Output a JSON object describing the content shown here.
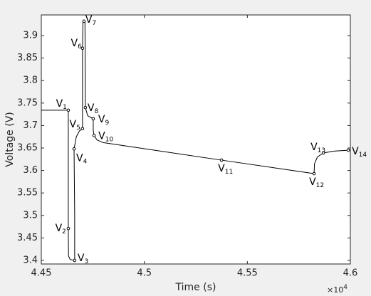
{
  "chart_data": {
    "type": "line",
    "xlabel": "Time (s)",
    "ylabel": "Voltage (V)",
    "x_multiplier": "×10",
    "x_multiplier_exp": "4",
    "xlim": [
      44500,
      46000
    ],
    "ylim": [
      3.392,
      3.946
    ],
    "xticks": [
      {
        "value": 44500,
        "label": "4.45"
      },
      {
        "value": 45000,
        "label": "4.5"
      },
      {
        "value": 45500,
        "label": "4.55"
      },
      {
        "value": 46000,
        "label": "4.6"
      }
    ],
    "yticks": [
      3.4,
      3.45,
      3.5,
      3.55,
      3.6,
      3.65,
      3.7,
      3.75,
      3.8,
      3.85,
      3.9
    ],
    "series": [
      {
        "color": "#000000",
        "x": [
          44500,
          44631,
          44631,
          44632,
          44640,
          44662,
          44662,
          44659,
          44670,
          44685,
          44700,
          44700,
          44702,
          44707,
          44712,
          44714,
          44725,
          44752,
          44752,
          44756,
          44770,
          44800,
          45375,
          45824,
          45826,
          45840,
          45869,
          45920,
          45990,
          46000
        ],
        "values": [
          3.734,
          3.734,
          3.471,
          3.41,
          3.402,
          3.4,
          3.5,
          3.648,
          3.675,
          3.688,
          3.693,
          3.872,
          3.93,
          3.932,
          3.93,
          3.74,
          3.722,
          3.715,
          3.69,
          3.678,
          3.668,
          3.662,
          3.623,
          3.593,
          3.615,
          3.63,
          3.639,
          3.643,
          3.645,
          3.646
        ]
      }
    ],
    "annotations": [
      {
        "text": "V",
        "sub": "1",
        "x": 44631,
        "y": 3.734
      },
      {
        "text": "V",
        "sub": "2",
        "x": 44631,
        "y": 3.471
      },
      {
        "text": "V",
        "sub": "3",
        "x": 44662,
        "y": 3.4
      },
      {
        "text": "V",
        "sub": "4",
        "x": 44659,
        "y": 3.648
      },
      {
        "text": "V",
        "sub": "5",
        "x": 44700,
        "y": 3.693
      },
      {
        "text": "V",
        "sub": "6",
        "x": 44700,
        "y": 3.872
      },
      {
        "text": "V",
        "sub": "7",
        "x": 44707,
        "y": 3.932
      },
      {
        "text": "V",
        "sub": "8",
        "x": 44714,
        "y": 3.74
      },
      {
        "text": "V",
        "sub": "9",
        "x": 44752,
        "y": 3.715
      },
      {
        "text": "V",
        "sub": "10",
        "x": 44756,
        "y": 3.678
      },
      {
        "text": "V",
        "sub": "11",
        "x": 45375,
        "y": 3.623
      },
      {
        "text": "V",
        "sub": "12",
        "x": 45824,
        "y": 3.593
      },
      {
        "text": "V",
        "sub": "13",
        "x": 45869,
        "y": 3.639
      },
      {
        "text": "V",
        "sub": "14",
        "x": 45990,
        "y": 3.645
      }
    ]
  }
}
